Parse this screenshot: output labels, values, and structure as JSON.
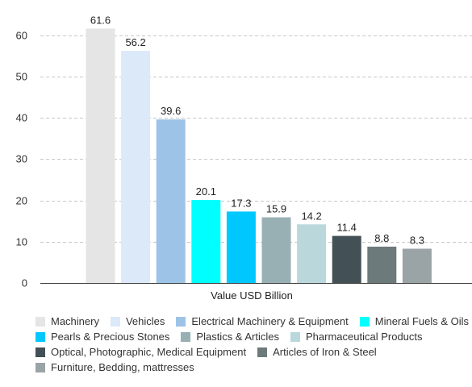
{
  "chart_data": {
    "type": "bar",
    "xlabel": "Value USD Billion",
    "ylim": [
      0,
      65
    ],
    "yticks": [
      0,
      10,
      20,
      30,
      40,
      50,
      60
    ],
    "grid": true,
    "legend_position": "bottom",
    "series": [
      {
        "name": "Machinery",
        "value": 61.6,
        "color": "#e5e5e5"
      },
      {
        "name": "Vehicles",
        "value": 56.2,
        "color": "#dbe9f9"
      },
      {
        "name": "Electrical Machinery & Equipment",
        "value": 39.6,
        "color": "#9dc3e6"
      },
      {
        "name": "Mineral Fuels & Oils",
        "value": 20.1,
        "color": "#00ffff"
      },
      {
        "name": "Pearls & Precious Stones",
        "value": 17.3,
        "color": "#00c8ff"
      },
      {
        "name": "Plastics & Articles",
        "value": 15.9,
        "color": "#98b0b4"
      },
      {
        "name": "Pharmaceutical Products",
        "value": 14.2,
        "color": "#bad8dc"
      },
      {
        "name": "Optical, Photographic, Medical Equipment",
        "value": 11.4,
        "color": "#435056"
      },
      {
        "name": "Articles of Iron & Steel",
        "value": 8.8,
        "color": "#6d7a7c"
      },
      {
        "name": "Furniture, Bedding, mattresses",
        "value": 8.3,
        "color": "#9aa3a6"
      }
    ]
  }
}
